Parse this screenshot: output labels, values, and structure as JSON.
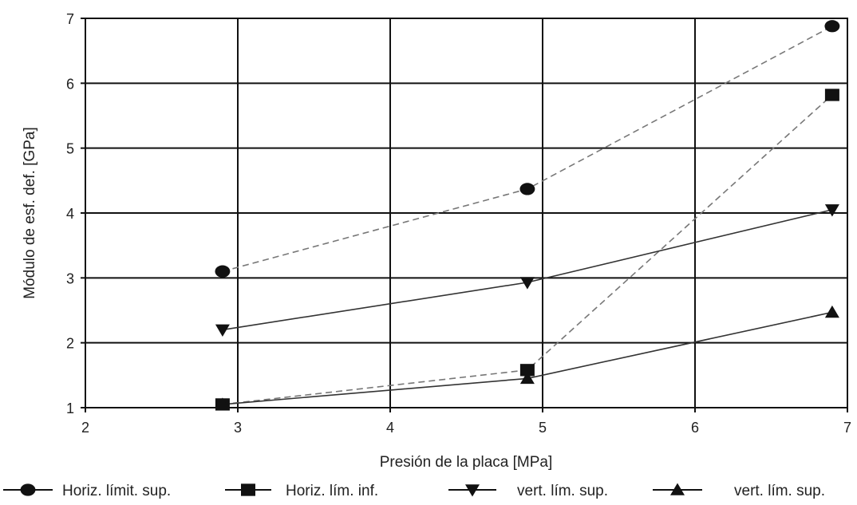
{
  "chart_data": {
    "type": "line",
    "title": "",
    "xlabel": "Presión de la placa [MPa]",
    "ylabel": "Módulo de esf. def. [GPa]",
    "xlim": [
      2,
      7
    ],
    "ylim": [
      1,
      7
    ],
    "xticks": [
      "2",
      "3",
      "4",
      "5",
      "6",
      "7"
    ],
    "yticks": [
      "1",
      "2",
      "3",
      "4",
      "5",
      "6",
      "7"
    ],
    "grid": true,
    "legend_position": "bottom",
    "series": [
      {
        "name": "Horiz. límit. sup.",
        "marker": "circle",
        "line": "dashed",
        "color": "#777777",
        "x": [
          2.9,
          4.9,
          6.9
        ],
        "y": [
          3.1,
          4.37,
          6.88
        ]
      },
      {
        "name": "Horiz. lím. inf.",
        "marker": "square",
        "line": "dashed",
        "color": "#777777",
        "x": [
          2.9,
          4.9,
          6.9
        ],
        "y": [
          1.05,
          1.58,
          5.82
        ]
      },
      {
        "name": "vert. lím. sup.",
        "marker": "triangle-down",
        "line": "solid",
        "color": "#333333",
        "x": [
          2.9,
          4.9,
          6.9
        ],
        "y": [
          2.2,
          2.93,
          4.05
        ]
      },
      {
        "name": "vert. lím. sup.",
        "marker": "triangle-up",
        "line": "solid",
        "color": "#333333",
        "x": [
          2.9,
          4.9,
          6.9
        ],
        "y": [
          1.05,
          1.45,
          2.47
        ]
      }
    ]
  }
}
